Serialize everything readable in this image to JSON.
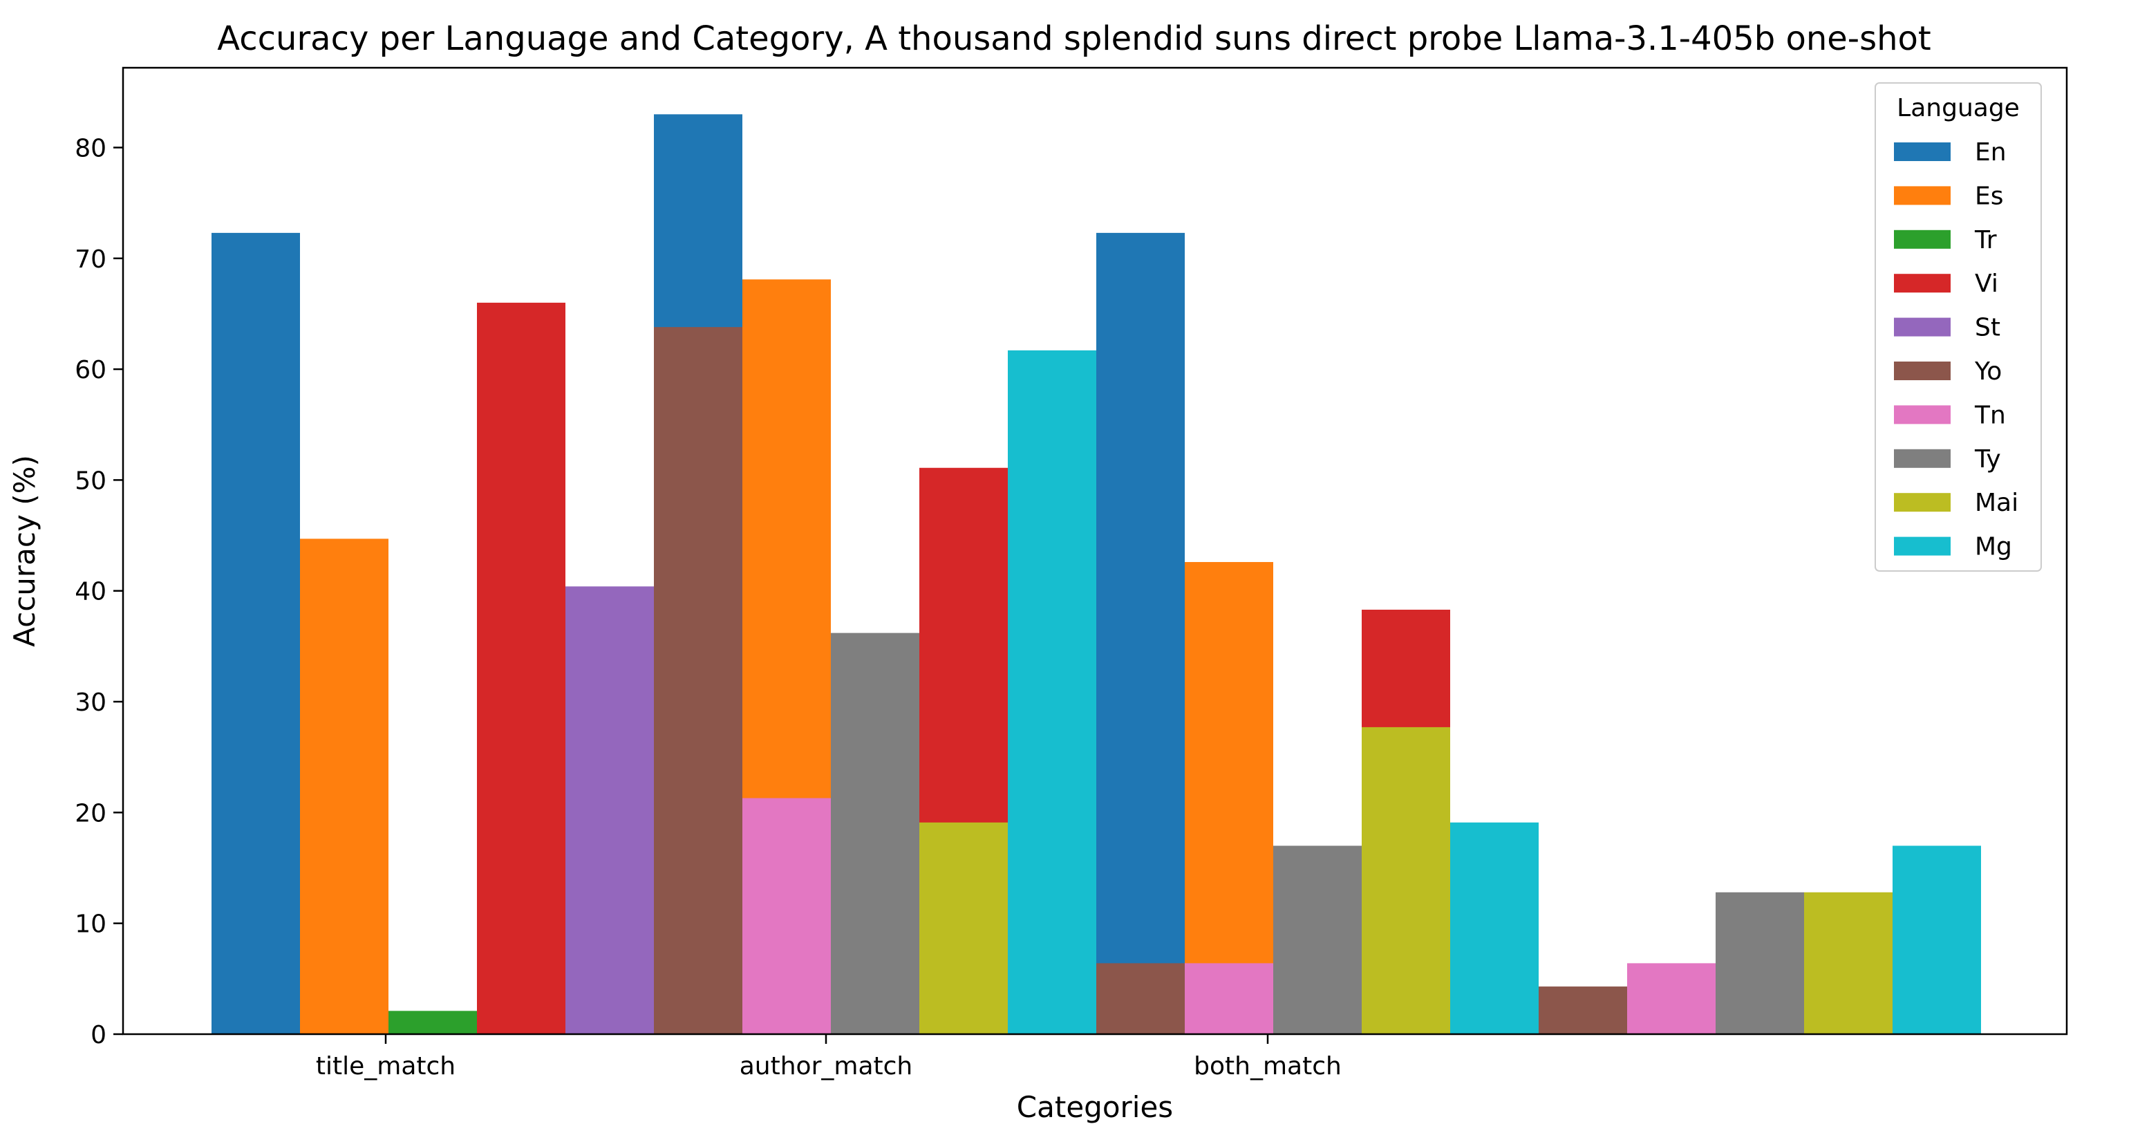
{
  "chart_data": {
    "type": "bar",
    "title": "Accuracy per Language and Category, A thousand splendid suns direct probe Llama-3.1-405b one-shot",
    "xlabel": "Categories",
    "ylabel": "Accuracy (%)",
    "categories": [
      "title_match",
      "author_match",
      "both_match"
    ],
    "ylim": [
      0,
      87.2
    ],
    "yticks": [
      "0",
      "10",
      "20",
      "30",
      "40",
      "50",
      "60",
      "70",
      "80"
    ],
    "grid": false,
    "legend": {
      "title": "Language",
      "position": "top-right"
    },
    "series": [
      {
        "name": "En",
        "color": "#1f77b4",
        "values": [
          72.3,
          83.0,
          72.3
        ]
      },
      {
        "name": "Es",
        "color": "#ff7f0e",
        "values": [
          44.7,
          68.1,
          42.6
        ]
      },
      {
        "name": "Tr",
        "color": "#2ca02c",
        "values": [
          2.1,
          0.0,
          0.0
        ]
      },
      {
        "name": "Vi",
        "color": "#d62728",
        "values": [
          66.0,
          51.1,
          38.3
        ]
      },
      {
        "name": "St",
        "color": "#9467bd",
        "values": [
          40.4,
          0.0,
          0.0
        ]
      },
      {
        "name": "Yo",
        "color": "#8c564b",
        "values": [
          63.8,
          6.4,
          4.3
        ]
      },
      {
        "name": "Tn",
        "color": "#e377c2",
        "values": [
          21.3,
          6.4,
          6.4
        ]
      },
      {
        "name": "Ty",
        "color": "#7f7f7f",
        "values": [
          36.2,
          17.0,
          12.8
        ]
      },
      {
        "name": "Mai",
        "color": "#bcbd22",
        "values": [
          19.1,
          27.7,
          12.8
        ]
      },
      {
        "name": "Mg",
        "color": "#17becf",
        "values": [
          61.7,
          19.1,
          17.0
        ]
      }
    ]
  }
}
